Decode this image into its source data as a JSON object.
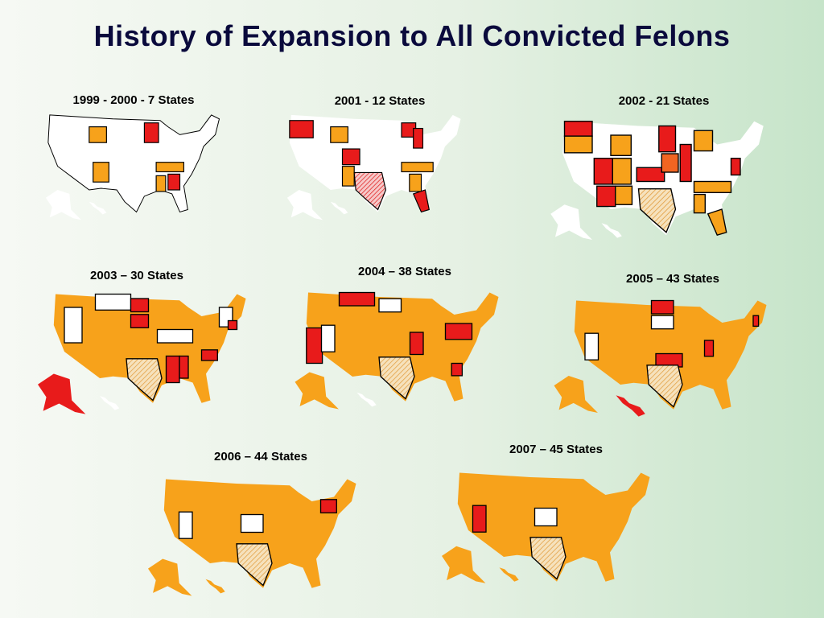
{
  "title": "History of Expansion to All Convicted Felons",
  "maps": [
    {
      "label": "1999 - 2000 - 7 States"
    },
    {
      "label": "2001 - 12 States"
    },
    {
      "label": "2002 - 21 States"
    },
    {
      "label": "2003 – 30 States"
    },
    {
      "label": "2004 – 38 States"
    },
    {
      "label": "2005 – 43 States"
    },
    {
      "label": "2006 – 44 States"
    },
    {
      "label": "2007 – 45 States"
    }
  ]
}
